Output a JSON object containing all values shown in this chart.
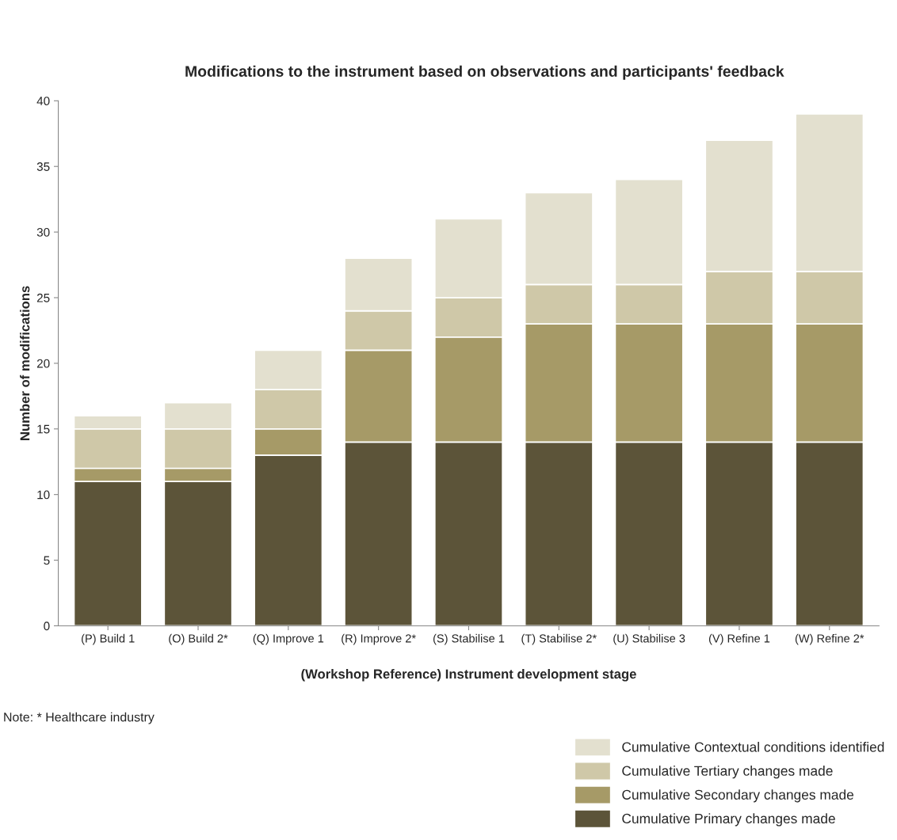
{
  "chart_data": {
    "type": "bar",
    "title": "Modifications to the instrument based on observations and participants' feedback",
    "xlabel": "(Workshop Reference) Instrument development stage",
    "ylabel": "Number of modifications",
    "categories": [
      "(P) Build 1",
      "(O) Build 2*",
      "(Q) Improve 1",
      "(R) Improve 2*",
      "(S) Stabilise 1",
      "(T) Stabilise 2*",
      "(U) Stabilise 3",
      "(V) Refine 1",
      "(W) Refine 2*"
    ],
    "stacked": true,
    "series": [
      {
        "name": "Cumulative Primary changes made",
        "color": "#5c5439",
        "values": [
          11,
          11,
          13,
          14,
          14,
          14,
          14,
          14,
          14
        ]
      },
      {
        "name": "Cumulative Secondary changes made",
        "color": "#a69a67",
        "values": [
          1,
          1,
          2,
          7,
          8,
          9,
          9,
          9,
          9
        ]
      },
      {
        "name": "Cumulative Tertiary changes made",
        "color": "#cfc8a8",
        "values": [
          3,
          3,
          3,
          3,
          3,
          3,
          3,
          4,
          4
        ]
      },
      {
        "name": "Cumulative Contextual conditions identified",
        "color": "#e3e0cf",
        "values": [
          1,
          2,
          3,
          4,
          6,
          7,
          8,
          10,
          12
        ]
      }
    ],
    "ylim": [
      0,
      40
    ],
    "yticks": [
      0,
      5,
      10,
      15,
      20,
      25,
      30,
      35,
      40
    ],
    "grid": false,
    "legend": "bottom right",
    "annotations": [
      "Note: * Healthcare industry"
    ]
  }
}
